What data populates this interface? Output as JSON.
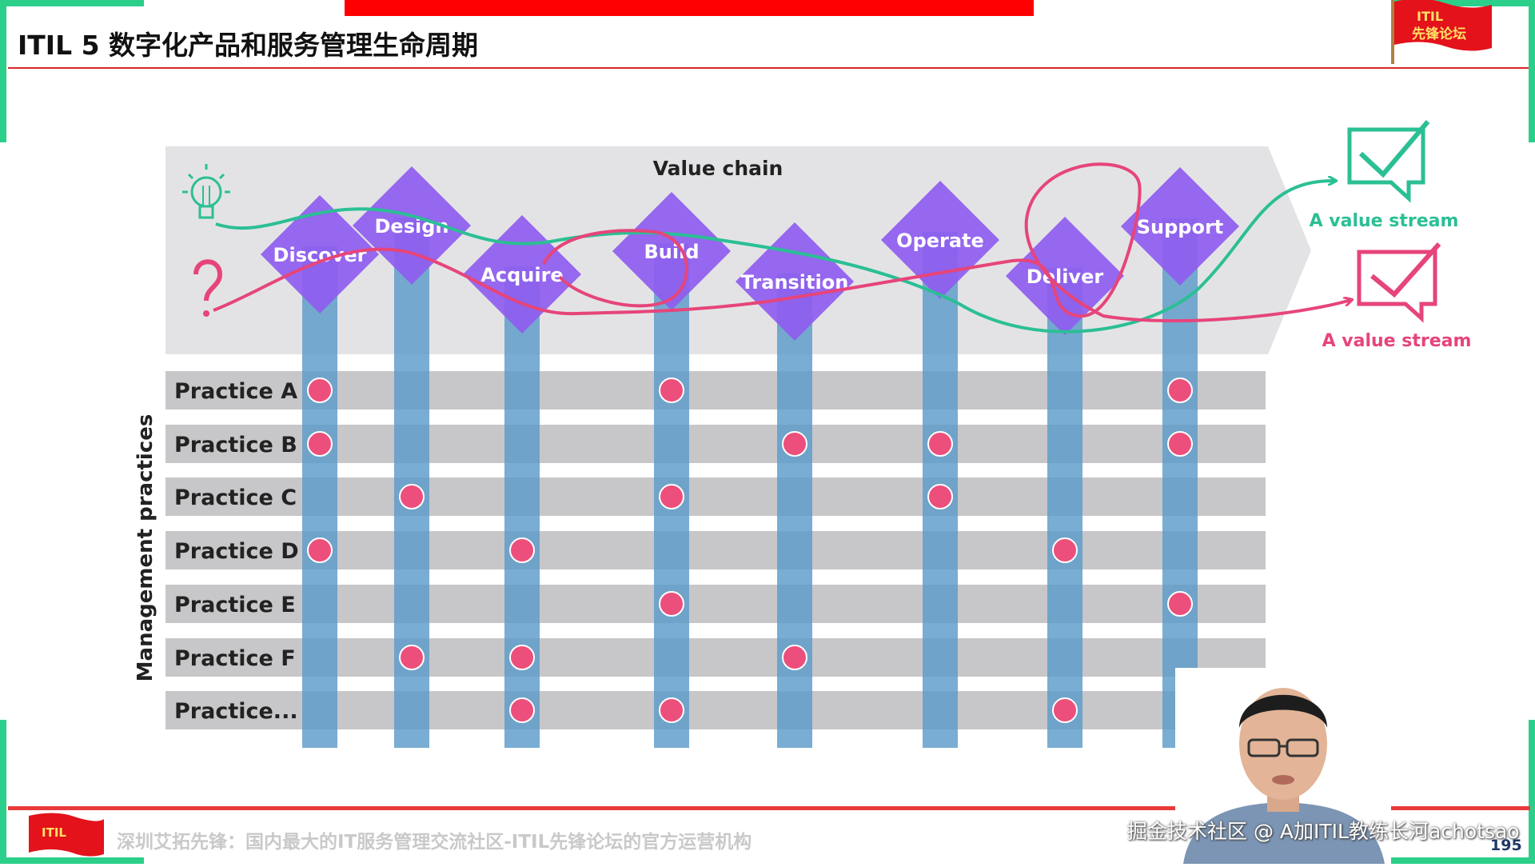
{
  "slide": {
    "title": "ITIL 5 数字化产品和服务管理生命周期",
    "page_number": "195",
    "footer_text": "深圳艾拓先锋：国内最大的IT服务管理交流社区-ITIL先锋论坛的官方运营机构",
    "watermark": "掘金技术社区 @ A加ITIL教练长河achotsao",
    "logo": {
      "line1": "ITIL",
      "line2": "先锋论坛"
    }
  },
  "diagram": {
    "value_chain_label": "Value chain",
    "axis_label": "Management practices",
    "stages": [
      "Discover",
      "Design",
      "Acquire",
      "Build",
      "Transition",
      "Operate",
      "Deliver",
      "Support"
    ],
    "practices": [
      "Practice A",
      "Practice B",
      "Practice C",
      "Practice D",
      "Practice E",
      "Practice F",
      "Practice..."
    ],
    "value_streams": [
      {
        "label": "A value stream",
        "color": "#2bbf94",
        "start_icon": "lightbulb-icon"
      },
      {
        "label": "A value stream",
        "color": "#e6457a",
        "start_icon": "question-mark-icon"
      }
    ],
    "colors": {
      "stage": "#8f5cf0",
      "column": "#5b9bc9",
      "band": "#c7c7c9",
      "dot": "#ec4f7c",
      "chevron": "#e3e3e5"
    }
  }
}
